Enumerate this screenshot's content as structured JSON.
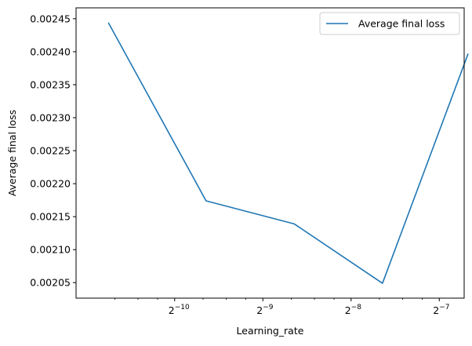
{
  "chart_data": {
    "type": "line",
    "title": "",
    "xlabel": "Learning_rate",
    "ylabel": "Average final loss",
    "x_scale": "log2",
    "x_tick_labels": [
      {
        "value": 0.0009765625,
        "base": "2",
        "exp": "−10"
      },
      {
        "value": 0.001953125,
        "base": "2",
        "exp": "−9"
      },
      {
        "value": 0.00390625,
        "base": "2",
        "exp": "−8"
      },
      {
        "value": 0.0078125,
        "base": "2",
        "exp": "−7"
      }
    ],
    "y_ticks": [
      "0.00205",
      "0.00210",
      "0.00215",
      "0.00220",
      "0.00225",
      "0.00230",
      "0.00235",
      "0.00240",
      "0.00245"
    ],
    "xlim": [
      0.00045,
      0.0095
    ],
    "ylim": [
      0.0020265,
      0.0024665
    ],
    "grid": false,
    "legend_position": "top-right",
    "series": [
      {
        "name": "Average final loss",
        "color": "#1f77b4",
        "points": [
          {
            "x": 0.00058,
            "y": 0.002444
          },
          {
            "x": 0.00125,
            "y": 0.002174
          },
          {
            "x": 0.0025,
            "y": 0.002139
          },
          {
            "x": 0.005,
            "y": 0.002049
          },
          {
            "x": 0.0098,
            "y": 0.002397
          }
        ]
      }
    ]
  }
}
